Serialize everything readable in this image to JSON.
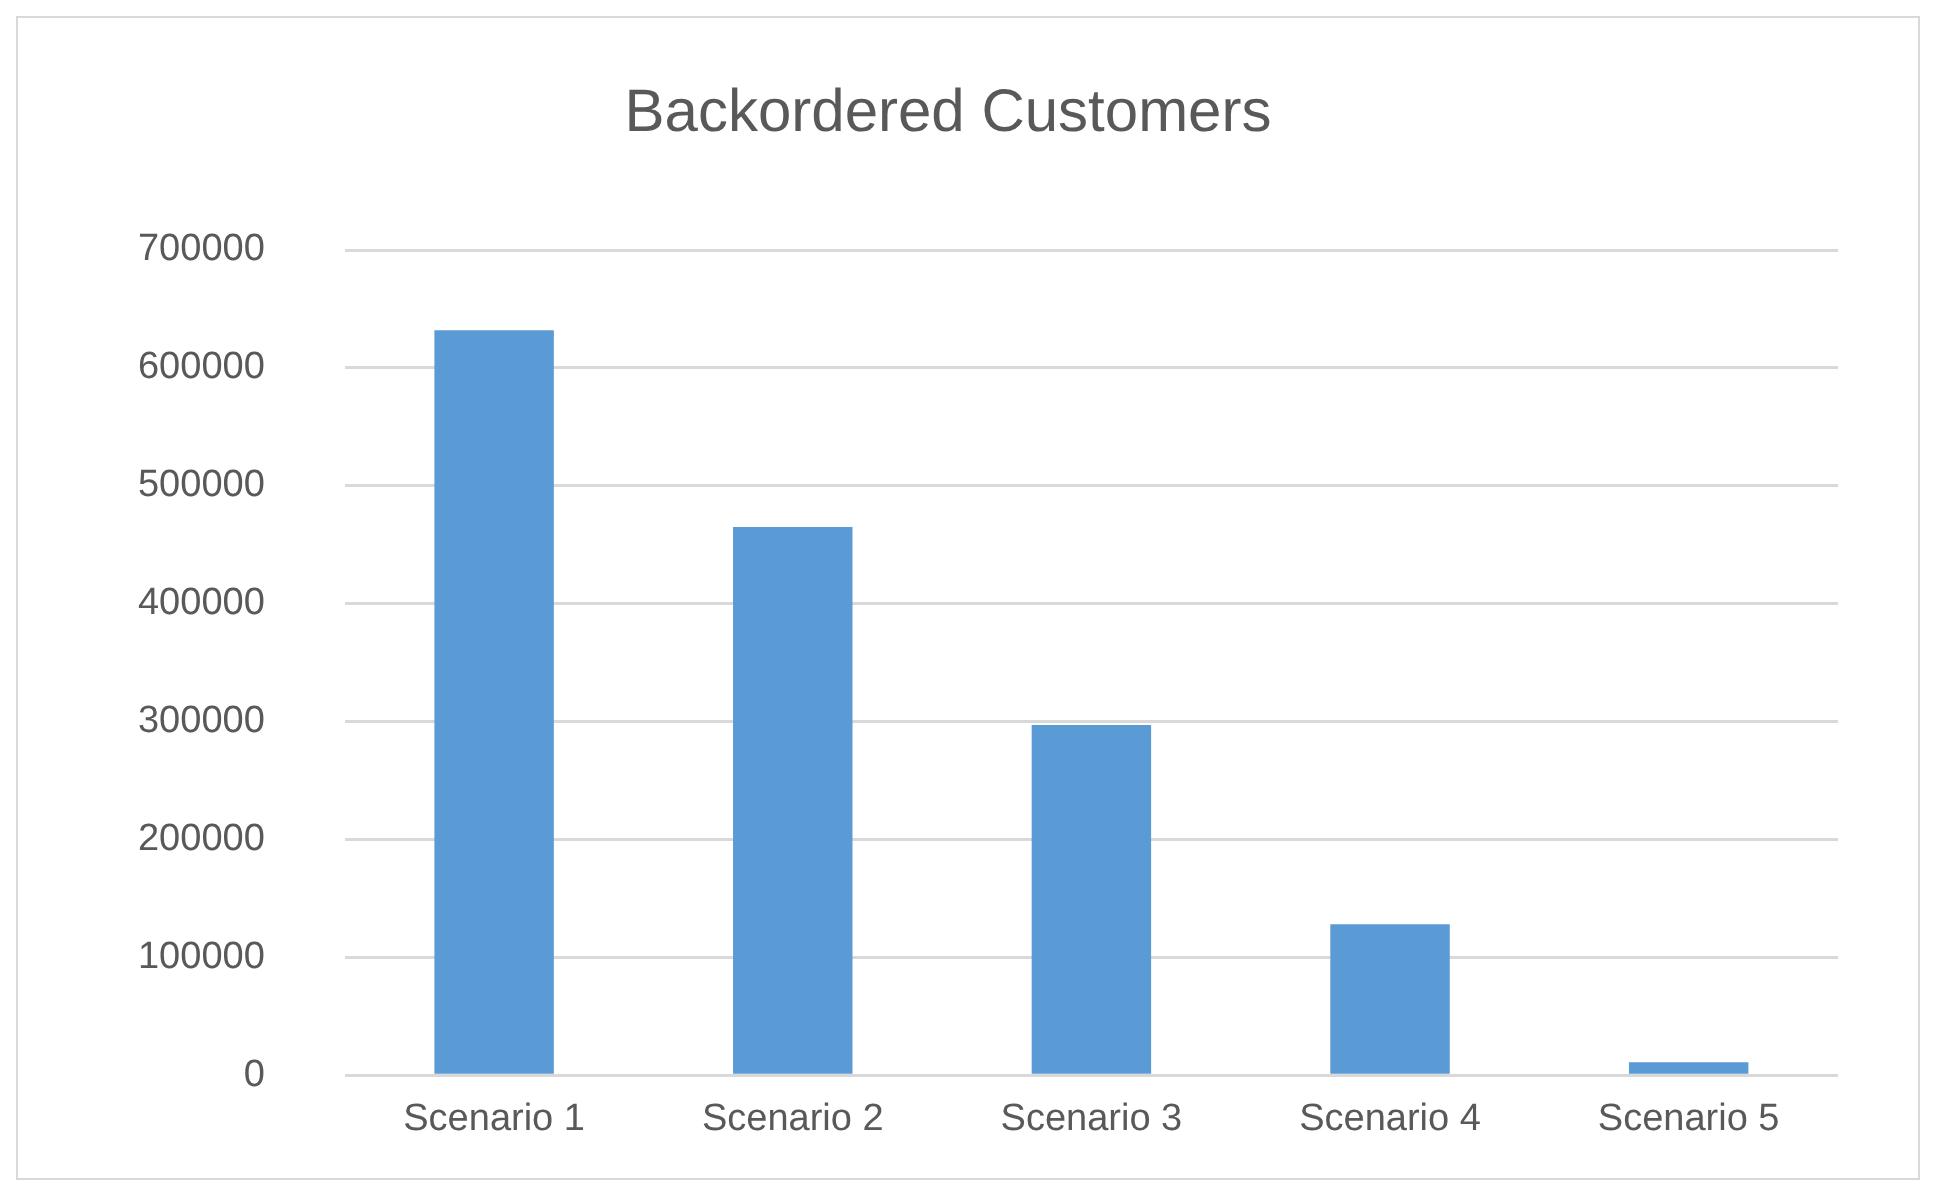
{
  "chart_data": {
    "type": "bar",
    "title": "Backordered Customers",
    "categories": [
      "Scenario 1",
      "Scenario 2",
      "Scenario 3",
      "Scenario 4",
      "Scenario 5"
    ],
    "values": [
      632000,
      465000,
      297000,
      128000,
      11000
    ],
    "color": "#5b9bd5",
    "ylim": [
      0,
      700000
    ],
    "yticks": [
      0,
      100000,
      200000,
      300000,
      400000,
      500000,
      600000,
      700000
    ],
    "grid": "y",
    "legend": false
  }
}
